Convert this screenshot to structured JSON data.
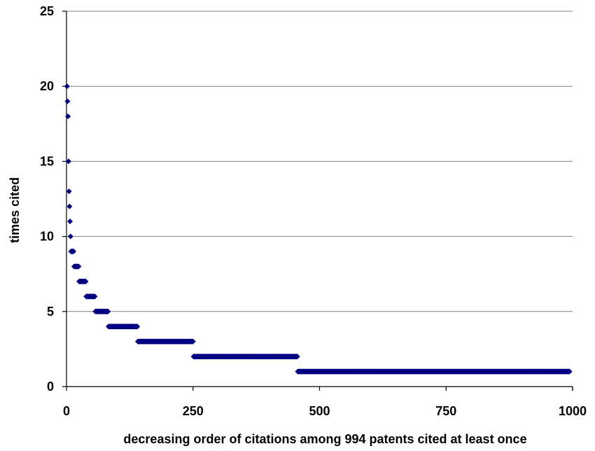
{
  "chart_data": {
    "type": "scatter",
    "title": "",
    "xlabel": "decreasing order of citations among 994 patents cited at least once",
    "ylabel": "times cited",
    "xlim": [
      0,
      1000
    ],
    "ylim": [
      0,
      25
    ],
    "x_ticks": [
      0,
      250,
      500,
      750,
      1000
    ],
    "y_ticks": [
      0,
      5,
      10,
      15,
      20,
      25
    ],
    "x_tick_labels": [
      "0",
      "250",
      "500",
      "750",
      "1000"
    ],
    "y_tick_labels": [
      "0",
      "5",
      "10",
      "15",
      "20",
      "25"
    ],
    "grid": "horizontal",
    "legend": "none",
    "colors": {
      "marker": "#000080",
      "grid": "#808080",
      "axis": "#000000"
    },
    "series": [
      {
        "marker": "diamond",
        "runs": [
          {
            "y": 20,
            "x_start": 1,
            "x_end": 1
          },
          {
            "y": 19,
            "x_start": 2,
            "x_end": 2
          },
          {
            "y": 18,
            "x_start": 3,
            "x_end": 3
          },
          {
            "y": 15,
            "x_start": 4,
            "x_end": 4
          },
          {
            "y": 13,
            "x_start": 5,
            "x_end": 5
          },
          {
            "y": 12,
            "x_start": 6,
            "x_end": 6
          },
          {
            "y": 11,
            "x_start": 7,
            "x_end": 7
          },
          {
            "y": 10,
            "x_start": 8,
            "x_end": 8
          },
          {
            "y": 9,
            "x_start": 9,
            "x_end": 14
          },
          {
            "y": 8,
            "x_start": 15,
            "x_end": 24
          },
          {
            "y": 7,
            "x_start": 25,
            "x_end": 38
          },
          {
            "y": 6,
            "x_start": 39,
            "x_end": 56
          },
          {
            "y": 5,
            "x_start": 57,
            "x_end": 82
          },
          {
            "y": 4,
            "x_start": 83,
            "x_end": 140
          },
          {
            "y": 3,
            "x_start": 141,
            "x_end": 250
          },
          {
            "y": 2,
            "x_start": 251,
            "x_end": 456
          },
          {
            "y": 1,
            "x_start": 457,
            "x_end": 994
          }
        ]
      }
    ]
  }
}
